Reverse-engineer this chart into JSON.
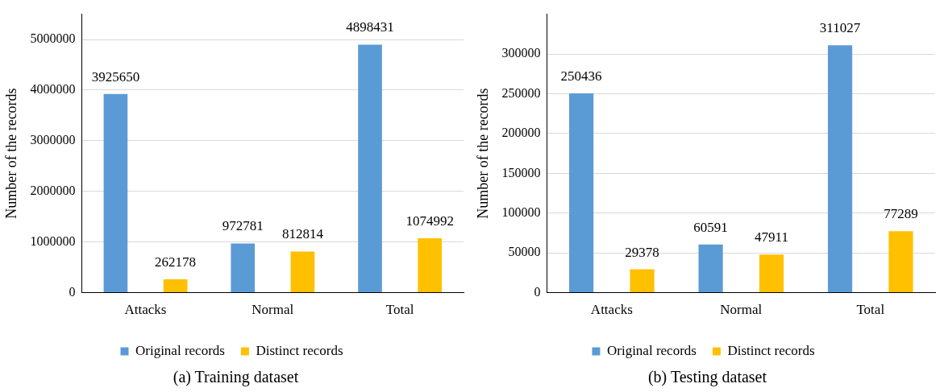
{
  "chart_data": [
    {
      "type": "bar",
      "title": "(a) Training dataset",
      "ylabel": "Number of the records",
      "categories": [
        "Attacks",
        "Normal",
        "Total"
      ],
      "series": [
        {
          "name": "Original records",
          "color": "#5b9bd5",
          "values": [
            3925650,
            972781,
            4898431
          ]
        },
        {
          "name": "Distinct records",
          "color": "#ffc000",
          "values": [
            262178,
            812814,
            1074992
          ]
        }
      ],
      "ylim": [
        0,
        5500000
      ],
      "yticks": [
        0,
        1000000,
        2000000,
        3000000,
        4000000,
        5000000
      ],
      "grid": "y",
      "legend": "bottom",
      "data_labels": true
    },
    {
      "type": "bar",
      "title": "(b) Testing dataset",
      "ylabel": "Number of the records",
      "categories": [
        "Attacks",
        "Normal",
        "Total"
      ],
      "series": [
        {
          "name": "Original records",
          "color": "#5b9bd5",
          "values": [
            250436,
            60591,
            311027
          ]
        },
        {
          "name": "Distinct records",
          "color": "#ffc000",
          "values": [
            29378,
            47911,
            77289
          ]
        }
      ],
      "ylim": [
        0,
        350000
      ],
      "yticks": [
        0,
        50000,
        100000,
        150000,
        200000,
        250000,
        300000
      ],
      "grid": "y",
      "legend": "bottom",
      "data_labels": true
    }
  ]
}
